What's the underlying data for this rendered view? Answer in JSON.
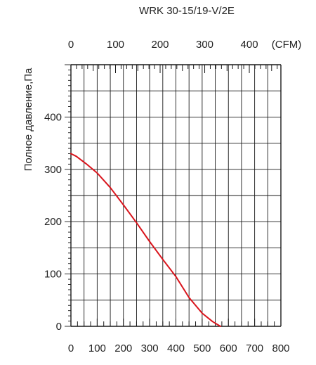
{
  "chart_data": {
    "type": "line",
    "title": "WRK 30-15/19-V/2E",
    "ylabel": "Полное давление,Па",
    "xlabel": "",
    "bottom_axis": {
      "ticks": [
        0,
        100,
        200,
        300,
        400,
        500,
        600,
        700,
        800
      ],
      "range": [
        0,
        800
      ]
    },
    "top_axis": {
      "ticks": [
        0,
        100,
        200,
        300,
        400
      ],
      "unit": "(CFM)",
      "range": [
        0,
        470.8
      ]
    },
    "ylim": [
      0,
      500
    ],
    "y_ticks": [
      0,
      100,
      200,
      300,
      400
    ],
    "grid": true,
    "series": [
      {
        "color": "#d9141c",
        "x": [
          0,
          20,
          60,
          100,
          150,
          200,
          250,
          300,
          350,
          400,
          450,
          500,
          540,
          560,
          570
        ],
        "y": [
          330,
          325,
          310,
          293,
          265,
          232,
          198,
          162,
          128,
          95,
          55,
          25,
          9,
          3,
          0
        ]
      }
    ]
  }
}
